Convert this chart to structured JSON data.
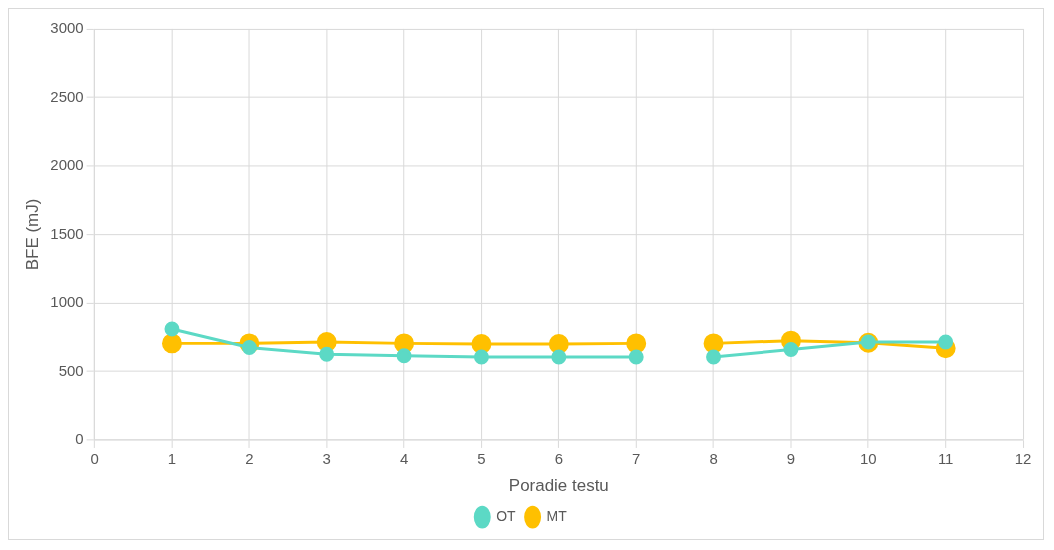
{
  "chart_data": {
    "type": "line",
    "xlabel": "Poradie testu",
    "ylabel": "BFE (mJ)",
    "x": [
      1,
      2,
      3,
      4,
      5,
      6,
      7,
      7.5,
      8,
      9,
      10,
      11
    ],
    "series": [
      {
        "name": "OT",
        "color": "#5cd9c5",
        "values": [
          810,
          675,
          625,
          615,
          605,
          605,
          605,
          null,
          605,
          660,
          715,
          715
        ]
      },
      {
        "name": "MT",
        "color": "#ffc000",
        "values": [
          705,
          705,
          715,
          705,
          700,
          700,
          705,
          null,
          705,
          725,
          710,
          670
        ]
      }
    ],
    "xlim": [
      0,
      12
    ],
    "xticks": [
      0,
      1,
      2,
      3,
      4,
      5,
      6,
      7,
      8,
      9,
      10,
      11,
      12
    ],
    "ylim": [
      0,
      3000
    ],
    "yticks": [
      0,
      500,
      1000,
      1500,
      2000,
      2500,
      3000
    ],
    "grid": true,
    "legend": "bottom",
    "marker": "circle",
    "line_style": "solid"
  }
}
